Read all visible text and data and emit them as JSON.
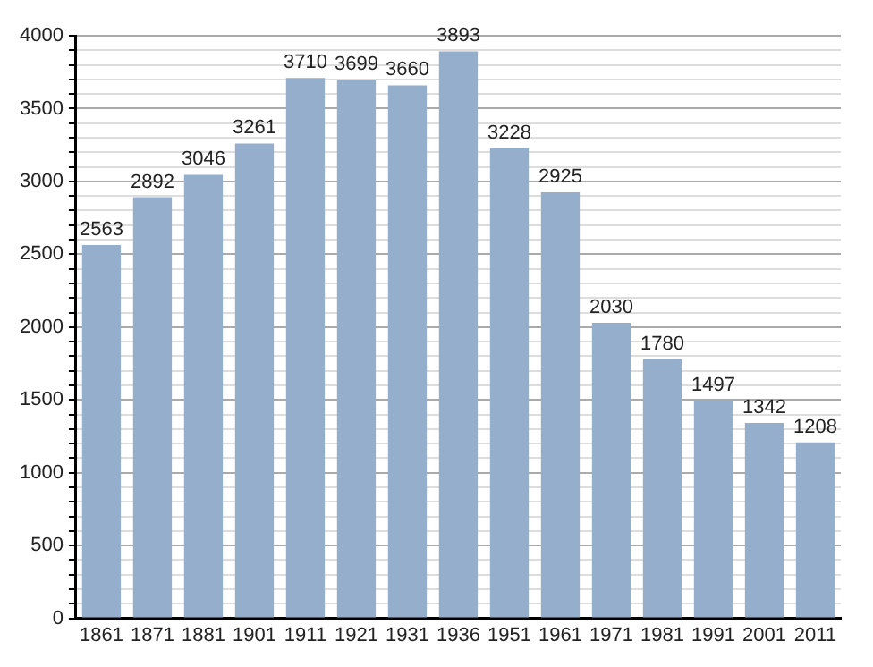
{
  "chart_data": {
    "type": "bar",
    "categories": [
      "1861",
      "1871",
      "1881",
      "1901",
      "1911",
      "1921",
      "1931",
      "1936",
      "1951",
      "1961",
      "1971",
      "1981",
      "1991",
      "2001",
      "2011"
    ],
    "values": [
      2563,
      2892,
      3046,
      3261,
      3710,
      3699,
      3660,
      3893,
      3228,
      2925,
      2030,
      1780,
      1497,
      1342,
      1208
    ],
    "color": "#94aecb",
    "ylim": [
      0,
      4000
    ],
    "yticks": [
      0,
      {
        "value": 100,
        "label": null
      },
      {
        "value": 200,
        "label": null
      },
      {
        "value": 300,
        "label": null
      },
      {
        "value": 400,
        "label": null
      },
      500,
      {
        "value": 600,
        "label": null
      },
      {
        "value": 700,
        "label": null
      },
      {
        "value": 800,
        "label": null
      },
      {
        "value": 900,
        "label": null
      },
      1000,
      {
        "value": 1100,
        "label": null
      },
      {
        "value": 1200,
        "label": null
      },
      {
        "value": 1300,
        "label": null
      },
      {
        "value": 1400,
        "label": null
      },
      1500,
      {
        "value": 1600,
        "label": null
      },
      {
        "value": 1700,
        "label": null
      },
      {
        "value": 1800,
        "label": null
      },
      {
        "value": 1900,
        "label": null
      },
      2000,
      {
        "value": 2100,
        "label": null
      },
      {
        "value": 2200,
        "label": null
      },
      {
        "value": 2300,
        "label": null
      },
      {
        "value": 2400,
        "label": null
      },
      2500,
      {
        "value": 2600,
        "label": null
      },
      {
        "value": 2700,
        "label": null
      },
      {
        "value": 2800,
        "label": null
      },
      {
        "value": 2900,
        "label": null
      },
      3000,
      {
        "value": 3100,
        "label": null
      },
      {
        "value": 3200,
        "label": null
      },
      {
        "value": 3300,
        "label": null
      },
      {
        "value": 3400,
        "label": null
      },
      3500,
      {
        "value": 3600,
        "label": null
      },
      {
        "value": 3700,
        "label": null
      },
      {
        "value": 3800,
        "label": null
      },
      {
        "value": 3900,
        "label": null
      },
      4000
    ],
    "grid": "y",
    "data_labels": true
  }
}
